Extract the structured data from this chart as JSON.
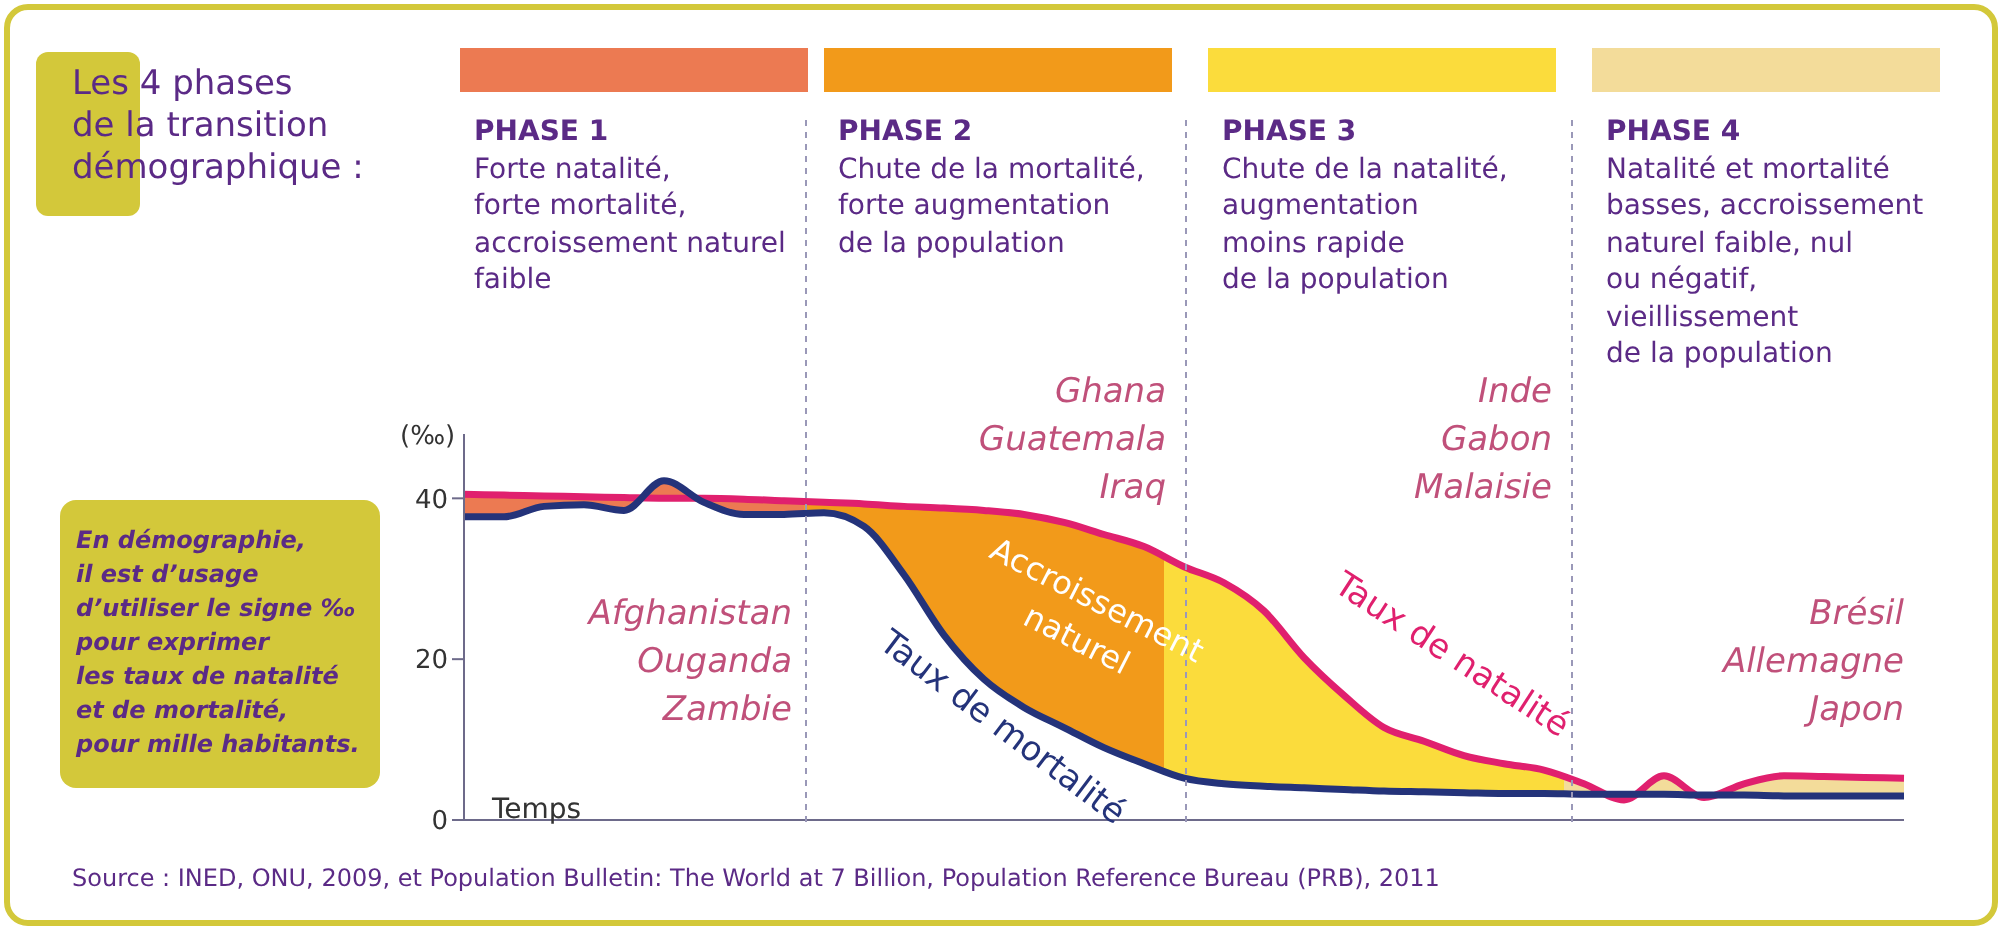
{
  "chart_data": {
    "type": "line",
    "title": "Les 4 phases\nde la transition\ndémographique :",
    "ylabel": "(‰)",
    "xlabel": "Temps",
    "categories": [
      null,
      null,
      null,
      null,
      null,
      null,
      null,
      null,
      null,
      null,
      null,
      null,
      null,
      null,
      null,
      null,
      null,
      null,
      null,
      null,
      null,
      null,
      null,
      null,
      null,
      null,
      null,
      null,
      null,
      null,
      null,
      null,
      null,
      null,
      null,
      null,
      null
    ],
    "series": [
      {
        "name": "Taux de natalité",
        "color": "#e0206e",
        "values": [
          40.5,
          40.4,
          40.3,
          40.2,
          40.1,
          40.0,
          40.0,
          39.9,
          39.7,
          39.5,
          39.3,
          39,
          38.8,
          38.5,
          38,
          37,
          35.5,
          34,
          31.5,
          29.5,
          26,
          20.2,
          15.5,
          11.5,
          9.8,
          8,
          7,
          6.2,
          4.5,
          2.5,
          5.5,
          2.8,
          4.5,
          5.5,
          5.4,
          5.3,
          5.2
        ],
        "lower": [
          37.7,
          37.7,
          39,
          39.2,
          38.5,
          42.2,
          39.5,
          38,
          38,
          38.2,
          36.5,
          30.5,
          23,
          17.5,
          14,
          11.5,
          9,
          7,
          5.2,
          4.5,
          4.2,
          4,
          3.8,
          3.6,
          3.5,
          3.4,
          3.3,
          3.3,
          3.2,
          3.2,
          3.2,
          3.1,
          3.1,
          3,
          3,
          3,
          3
        ],
        "upper": [
          40.5,
          40.4,
          40.3,
          40.2,
          40.1,
          40.0,
          40.0,
          39.9,
          39.7,
          39.5,
          39.3,
          39,
          38.8,
          38.5,
          38,
          37,
          35.5,
          34,
          31.5,
          29.5,
          26,
          20.2,
          15.5,
          11.5,
          9.8,
          8,
          7,
          6.2,
          4.5,
          2.5,
          5.5,
          2.8,
          4.5,
          5.5,
          5.4,
          5.3,
          5.2
        ],
        "colors": [
          "#ec7a52",
          "#ec7a52",
          "#ec7a52",
          "#ec7a52",
          "#ec7a52",
          "#ec7a52",
          "#ec7a52",
          "#ec7a52",
          "#ec7a52",
          "#f29a1a",
          "#f29a1a",
          "#f29a1a",
          "#f29a1a",
          "#f29a1a",
          "#f29a1a",
          "#f29a1a",
          "#f29a1a",
          "#f29a1a",
          "#fbdc3c",
          "#fbdc3c",
          "#fbdc3c",
          "#fbdc3c",
          "#fbdc3c",
          "#fbdc3c",
          "#fbdc3c",
          "#fbdc3c",
          "#fbdc3c",
          "#fbdc3c",
          "#f3dc9a",
          "#f3dc9a",
          "#f3dc9a",
          "#f3dc9a",
          "#f3dc9a",
          "#f3dc9a",
          "#f3dc9a",
          "#f3dc9a",
          "#f3dc9a"
        ]
      },
      {
        "name": "Taux de mortalité",
        "color": "#24337a",
        "values": [
          37.7,
          37.7,
          39,
          39.2,
          38.5,
          42.2,
          39.5,
          38,
          38,
          38.2,
          36.5,
          30.5,
          23,
          17.5,
          14,
          11.5,
          9,
          7,
          5.2,
          4.5,
          4.2,
          4,
          3.8,
          3.6,
          3.5,
          3.4,
          3.3,
          3.3,
          3.2,
          3.2,
          3.2,
          3.1,
          3.1,
          3,
          3,
          3,
          3
        ]
      }
    ],
    "ylim": [
      0,
      48
    ],
    "yticks": [
      0,
      20,
      40
    ],
    "grid": false,
    "legend": false,
    "annotations": [
      "PHASE 1\nForte natalité,\nforte mortalité,\naccroissement naturel\nfaible",
      "PHASE 2\nChute de la mortalité,\nforte augmentation\nde la population",
      "PHASE 3\nChute de la natalité,\naugmentation\nmoins rapide\nde la population",
      "PHASE 4\nNatalité et mortalité\nbasses, accroissement\nnaturel faible, nul\nou négatif,\nvieillissement\nde la population",
      "Afghanistan\nOuganda\nZambie",
      "Ghana\nGuatemala\nIraq",
      "Inde\nGabon\nMalaisie",
      "Brésil\nAllemagne\nJapon",
      "En démographie,\nil est d’usage\nd’utiliser le signe ‰\npour exprimer\nles taux de natalité\net de mortalité,\npour mille habitants.",
      "Source : INED, ONU, 2009, et Population Bulletin: The World at 7 Billion, Population Reference Bureau (PRB), 2011",
      "Accroissement\nnaturel"
    ]
  }
}
